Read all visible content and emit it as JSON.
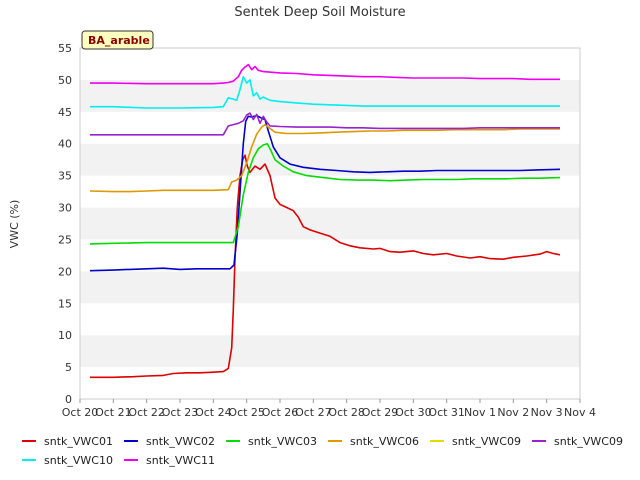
{
  "chart_data": {
    "type": "line",
    "title": "Sentek Deep Soil Moisture",
    "xlabel": "",
    "ylabel": "VWC (%)",
    "badge": "BA_arable",
    "ylim": [
      0,
      55
    ],
    "yticks": [
      0,
      5,
      10,
      15,
      20,
      25,
      30,
      35,
      40,
      45,
      50,
      55
    ],
    "xlim": [
      0,
      15
    ],
    "xticks": [
      {
        "v": 0,
        "label": "Oct 20"
      },
      {
        "v": 1,
        "label": "Oct 21"
      },
      {
        "v": 2,
        "label": "Oct 22"
      },
      {
        "v": 3,
        "label": "Oct 23"
      },
      {
        "v": 4,
        "label": "Oct 24"
      },
      {
        "v": 5,
        "label": "Oct 25"
      },
      {
        "v": 6,
        "label": "Oct 26"
      },
      {
        "v": 7,
        "label": "Oct 27"
      },
      {
        "v": 8,
        "label": "Oct 28"
      },
      {
        "v": 9,
        "label": "Oct 29"
      },
      {
        "v": 10,
        "label": "Oct 30"
      },
      {
        "v": 11,
        "label": "Oct 31"
      },
      {
        "v": 12,
        "label": "Nov 1"
      },
      {
        "v": 13,
        "label": "Nov 2"
      },
      {
        "v": 14,
        "label": "Nov 3"
      },
      {
        "v": 15,
        "label": "Nov 4"
      }
    ],
    "grid_bands": true,
    "legend_position": "bottom",
    "series": [
      {
        "name": "sntk_VWC01",
        "color": "#dd0000",
        "points": [
          [
            0.3,
            3.4
          ],
          [
            1.0,
            3.4
          ],
          [
            1.6,
            3.5
          ],
          [
            2.0,
            3.6
          ],
          [
            2.5,
            3.7
          ],
          [
            2.8,
            4.0
          ],
          [
            3.2,
            4.1
          ],
          [
            3.6,
            4.1
          ],
          [
            4.0,
            4.2
          ],
          [
            4.3,
            4.3
          ],
          [
            4.45,
            4.8
          ],
          [
            4.55,
            8
          ],
          [
            4.6,
            14
          ],
          [
            4.65,
            22
          ],
          [
            4.72,
            30
          ],
          [
            4.8,
            35
          ],
          [
            4.88,
            37.5
          ],
          [
            4.95,
            38.2
          ],
          [
            5.02,
            36.5
          ],
          [
            5.1,
            35.5
          ],
          [
            5.25,
            36.5
          ],
          [
            5.4,
            36
          ],
          [
            5.55,
            36.8
          ],
          [
            5.7,
            35
          ],
          [
            5.85,
            31.5
          ],
          [
            6.0,
            30.5
          ],
          [
            6.2,
            30
          ],
          [
            6.4,
            29.5
          ],
          [
            6.55,
            28.5
          ],
          [
            6.7,
            27
          ],
          [
            6.9,
            26.5
          ],
          [
            7.2,
            26
          ],
          [
            7.5,
            25.5
          ],
          [
            7.8,
            24.5
          ],
          [
            8.1,
            24
          ],
          [
            8.4,
            23.7
          ],
          [
            8.8,
            23.5
          ],
          [
            9.0,
            23.6
          ],
          [
            9.3,
            23.1
          ],
          [
            9.6,
            23
          ],
          [
            10.0,
            23.2
          ],
          [
            10.3,
            22.8
          ],
          [
            10.6,
            22.6
          ],
          [
            11.0,
            22.8
          ],
          [
            11.3,
            22.4
          ],
          [
            11.7,
            22.1
          ],
          [
            12.0,
            22.3
          ],
          [
            12.3,
            22.0
          ],
          [
            12.7,
            21.9
          ],
          [
            13.0,
            22.2
          ],
          [
            13.4,
            22.4
          ],
          [
            13.8,
            22.7
          ],
          [
            14.0,
            23.1
          ],
          [
            14.2,
            22.8
          ],
          [
            14.4,
            22.6
          ]
        ]
      },
      {
        "name": "sntk_VWC02",
        "color": "#0000cc",
        "points": [
          [
            0.3,
            20.1
          ],
          [
            1.0,
            20.2
          ],
          [
            1.5,
            20.3
          ],
          [
            2.0,
            20.4
          ],
          [
            2.5,
            20.5
          ],
          [
            3.0,
            20.3
          ],
          [
            3.5,
            20.4
          ],
          [
            4.0,
            20.4
          ],
          [
            4.5,
            20.4
          ],
          [
            4.62,
            21
          ],
          [
            4.72,
            26
          ],
          [
            4.82,
            34
          ],
          [
            4.9,
            40
          ],
          [
            4.97,
            43.5
          ],
          [
            5.05,
            44.3
          ],
          [
            5.15,
            44.2
          ],
          [
            5.3,
            44.4
          ],
          [
            5.45,
            44
          ],
          [
            5.55,
            43.8
          ],
          [
            5.65,
            42
          ],
          [
            5.8,
            39.5
          ],
          [
            6.0,
            37.8
          ],
          [
            6.3,
            36.8
          ],
          [
            6.7,
            36.3
          ],
          [
            7.2,
            36
          ],
          [
            7.7,
            35.8
          ],
          [
            8.2,
            35.6
          ],
          [
            8.7,
            35.5
          ],
          [
            9.2,
            35.6
          ],
          [
            9.7,
            35.7
          ],
          [
            10.2,
            35.7
          ],
          [
            10.7,
            35.8
          ],
          [
            11.2,
            35.8
          ],
          [
            11.7,
            35.8
          ],
          [
            12.2,
            35.8
          ],
          [
            12.7,
            35.8
          ],
          [
            13.2,
            35.8
          ],
          [
            13.7,
            35.9
          ],
          [
            14.4,
            36.0
          ]
        ]
      },
      {
        "name": "sntk_VWC03",
        "color": "#00dd00",
        "points": [
          [
            0.3,
            24.3
          ],
          [
            1.0,
            24.4
          ],
          [
            2.0,
            24.5
          ],
          [
            3.0,
            24.5
          ],
          [
            4.0,
            24.5
          ],
          [
            4.6,
            24.5
          ],
          [
            4.75,
            27
          ],
          [
            4.9,
            32
          ],
          [
            5.05,
            35.5
          ],
          [
            5.2,
            37.8
          ],
          [
            5.35,
            39.2
          ],
          [
            5.5,
            39.8
          ],
          [
            5.62,
            40
          ],
          [
            5.72,
            39
          ],
          [
            5.85,
            37.5
          ],
          [
            6.1,
            36.5
          ],
          [
            6.4,
            35.6
          ],
          [
            6.8,
            35
          ],
          [
            7.3,
            34.7
          ],
          [
            7.8,
            34.4
          ],
          [
            8.3,
            34.3
          ],
          [
            8.8,
            34.3
          ],
          [
            9.3,
            34.2
          ],
          [
            9.8,
            34.3
          ],
          [
            10.3,
            34.4
          ],
          [
            10.8,
            34.4
          ],
          [
            11.3,
            34.4
          ],
          [
            11.8,
            34.5
          ],
          [
            12.3,
            34.5
          ],
          [
            12.8,
            34.5
          ],
          [
            13.3,
            34.6
          ],
          [
            13.8,
            34.6
          ],
          [
            14.4,
            34.7
          ]
        ]
      },
      {
        "name": "sntk_VWC06",
        "color": "#dd9900",
        "points": [
          [
            0.3,
            32.6
          ],
          [
            1.0,
            32.5
          ],
          [
            1.5,
            32.5
          ],
          [
            2.0,
            32.6
          ],
          [
            2.5,
            32.7
          ],
          [
            3.0,
            32.7
          ],
          [
            3.5,
            32.7
          ],
          [
            4.0,
            32.7
          ],
          [
            4.45,
            32.8
          ],
          [
            4.55,
            34
          ],
          [
            4.7,
            34.3
          ],
          [
            4.85,
            35
          ],
          [
            5.0,
            37
          ],
          [
            5.15,
            39.5
          ],
          [
            5.3,
            41.5
          ],
          [
            5.45,
            42.6
          ],
          [
            5.55,
            43
          ],
          [
            5.65,
            42.6
          ],
          [
            5.85,
            41.8
          ],
          [
            6.2,
            41.6
          ],
          [
            6.7,
            41.6
          ],
          [
            7.2,
            41.7
          ],
          [
            7.7,
            41.8
          ],
          [
            8.2,
            41.9
          ],
          [
            8.7,
            42
          ],
          [
            9.2,
            42
          ],
          [
            9.7,
            42.1
          ],
          [
            10.2,
            42.1
          ],
          [
            10.7,
            42.1
          ],
          [
            11.2,
            42.2
          ],
          [
            11.7,
            42.2
          ],
          [
            12.2,
            42.2
          ],
          [
            12.7,
            42.2
          ],
          [
            13.2,
            42.3
          ],
          [
            13.7,
            42.3
          ],
          [
            14.4,
            42.3
          ]
        ]
      },
      {
        "name": "sntk_VWC09",
        "color": "#dddd00",
        "points": []
      },
      {
        "name": "sntk_VWC09",
        "color": "#9922cc",
        "points": [
          [
            0.3,
            41.4
          ],
          [
            1.0,
            41.4
          ],
          [
            2.0,
            41.4
          ],
          [
            3.0,
            41.4
          ],
          [
            4.0,
            41.4
          ],
          [
            4.3,
            41.4
          ],
          [
            4.45,
            42.8
          ],
          [
            4.6,
            43
          ],
          [
            4.75,
            43.2
          ],
          [
            4.9,
            43.6
          ],
          [
            5.0,
            44.5
          ],
          [
            5.1,
            44.8
          ],
          [
            5.2,
            43.8
          ],
          [
            5.3,
            44.6
          ],
          [
            5.4,
            43.2
          ],
          [
            5.5,
            44.3
          ],
          [
            5.6,
            43.4
          ],
          [
            5.7,
            42.8
          ],
          [
            6.0,
            42.7
          ],
          [
            6.5,
            42.6
          ],
          [
            7.0,
            42.6
          ],
          [
            7.5,
            42.6
          ],
          [
            8.0,
            42.5
          ],
          [
            8.5,
            42.5
          ],
          [
            9.0,
            42.4
          ],
          [
            9.5,
            42.4
          ],
          [
            10.0,
            42.4
          ],
          [
            10.5,
            42.4
          ],
          [
            11.0,
            42.4
          ],
          [
            11.5,
            42.4
          ],
          [
            12.0,
            42.5
          ],
          [
            12.5,
            42.5
          ],
          [
            13.0,
            42.5
          ],
          [
            13.5,
            42.5
          ],
          [
            14.4,
            42.5
          ]
        ]
      },
      {
        "name": "sntk_VWC10",
        "color": "#00eeee",
        "points": [
          [
            0.3,
            45.8
          ],
          [
            1.0,
            45.8
          ],
          [
            2.0,
            45.6
          ],
          [
            3.0,
            45.6
          ],
          [
            4.0,
            45.7
          ],
          [
            4.3,
            45.8
          ],
          [
            4.45,
            47.2
          ],
          [
            4.6,
            47
          ],
          [
            4.7,
            46.8
          ],
          [
            4.8,
            48.5
          ],
          [
            4.9,
            50.5
          ],
          [
            5.0,
            49.5
          ],
          [
            5.1,
            50
          ],
          [
            5.2,
            47.5
          ],
          [
            5.3,
            48
          ],
          [
            5.4,
            47
          ],
          [
            5.5,
            47.3
          ],
          [
            5.7,
            46.8
          ],
          [
            6.0,
            46.6
          ],
          [
            6.5,
            46.4
          ],
          [
            7.0,
            46.2
          ],
          [
            7.5,
            46.1
          ],
          [
            8.0,
            46.0
          ],
          [
            8.5,
            45.9
          ],
          [
            9.0,
            45.9
          ],
          [
            9.5,
            45.9
          ],
          [
            10.0,
            45.9
          ],
          [
            11.0,
            45.9
          ],
          [
            12.0,
            45.9
          ],
          [
            13.0,
            45.9
          ],
          [
            14.4,
            45.9
          ]
        ]
      },
      {
        "name": "sntk_VWC11",
        "color": "#ee00ee",
        "points": [
          [
            0.3,
            49.5
          ],
          [
            1.0,
            49.5
          ],
          [
            2.0,
            49.4
          ],
          [
            3.0,
            49.4
          ],
          [
            4.0,
            49.4
          ],
          [
            4.3,
            49.5
          ],
          [
            4.45,
            49.6
          ],
          [
            4.6,
            49.8
          ],
          [
            4.75,
            50.5
          ],
          [
            4.85,
            51.5
          ],
          [
            4.95,
            52
          ],
          [
            5.05,
            52.4
          ],
          [
            5.15,
            51.6
          ],
          [
            5.25,
            52.1
          ],
          [
            5.35,
            51.5
          ],
          [
            5.5,
            51.3
          ],
          [
            6.0,
            51.1
          ],
          [
            6.5,
            51.0
          ],
          [
            7.0,
            50.8
          ],
          [
            7.5,
            50.7
          ],
          [
            8.0,
            50.6
          ],
          [
            8.5,
            50.5
          ],
          [
            9.0,
            50.5
          ],
          [
            9.5,
            50.4
          ],
          [
            10.0,
            50.3
          ],
          [
            10.5,
            50.3
          ],
          [
            11.0,
            50.3
          ],
          [
            11.5,
            50.3
          ],
          [
            12.0,
            50.2
          ],
          [
            12.5,
            50.2
          ],
          [
            13.0,
            50.2
          ],
          [
            13.5,
            50.1
          ],
          [
            14.4,
            50.1
          ]
        ]
      }
    ]
  }
}
